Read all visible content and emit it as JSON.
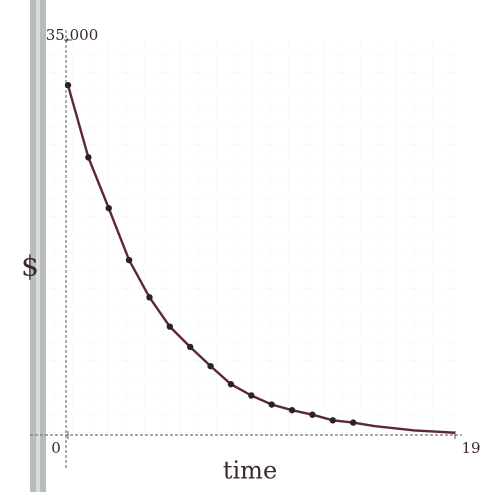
{
  "chart_data": {
    "type": "scatter",
    "xlabel": "time",
    "ylabel": "$",
    "xlim": [
      0,
      19
    ],
    "ylim": [
      0,
      35000
    ],
    "xticks": [
      0,
      19
    ],
    "yticks": [
      {
        "value": 35000,
        "label": "35,000"
      }
    ],
    "series": [
      {
        "mode": "markers",
        "color": "#2b2224",
        "x": [
          0,
          1,
          2,
          3,
          4,
          5,
          6,
          7,
          8,
          9,
          10,
          11,
          12,
          13,
          14
        ],
        "values": [
          31000,
          24600,
          20100,
          15500,
          12200,
          9600,
          7800,
          6100,
          4500,
          3500,
          2700,
          2200,
          1800,
          1300,
          1100
        ]
      },
      {
        "mode": "line",
        "color": "#5a2a30",
        "x": [
          0,
          1,
          2,
          3,
          4,
          5,
          6,
          7,
          8,
          9,
          10,
          11,
          12,
          13,
          14,
          15,
          16,
          17,
          18,
          19
        ],
        "values": [
          31000,
          24600,
          20100,
          15500,
          12200,
          9600,
          7800,
          6100,
          4500,
          3500,
          2700,
          2200,
          1800,
          1300,
          1100,
          800,
          600,
          400,
          300,
          200
        ]
      }
    ]
  }
}
